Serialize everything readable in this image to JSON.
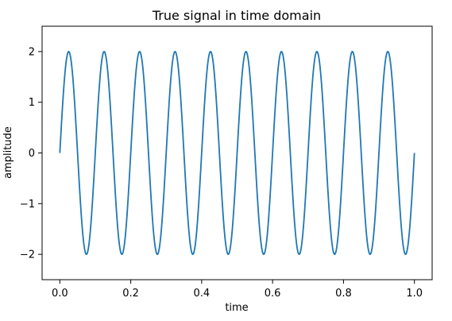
{
  "chart_data": {
    "type": "line",
    "title": "True signal in time domain",
    "xlabel": "time",
    "ylabel": "amplitude",
    "xlim": [
      -0.05,
      1.05
    ],
    "ylim": [
      -2.5,
      2.5
    ],
    "x_ticks": [
      0.0,
      0.2,
      0.4,
      0.6,
      0.8,
      1.0
    ],
    "x_tick_labels": [
      "0.0",
      "0.2",
      "0.4",
      "0.6",
      "0.8",
      "1.0"
    ],
    "y_ticks": [
      -2,
      -1,
      0,
      1,
      2
    ],
    "y_tick_labels": [
      "−2",
      "−1",
      "0",
      "1",
      "2"
    ],
    "grid": false,
    "legend": "none",
    "series": [
      {
        "function": "2*sin(2*pi*10*t)",
        "amplitude": 2,
        "frequency": 10,
        "t_start": 0.0,
        "t_end": 1.0,
        "color": "#1f77b4"
      }
    ]
  }
}
